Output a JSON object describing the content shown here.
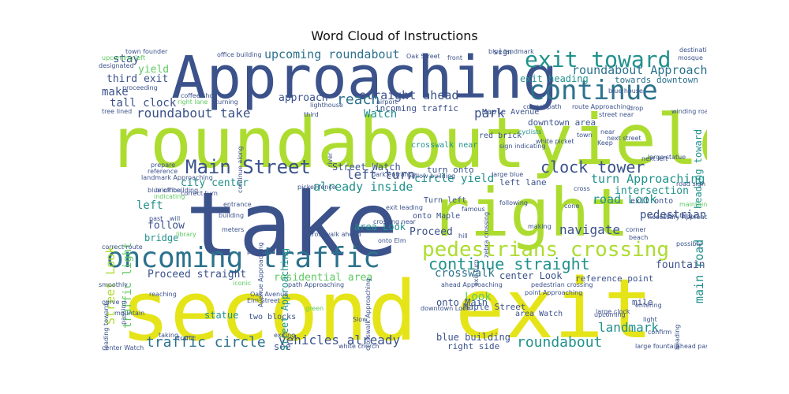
{
  "title": "Word Cloud of Instructions",
  "palette": {
    "purple": "#472a7a",
    "indigo": "#3b528b",
    "blue": "#2c728e",
    "teal": "#21918c",
    "green": "#28ae80",
    "lime": "#5ec962",
    "yellowgreen": "#addc30",
    "yellow": "#e5e419",
    "dark": "#440154"
  },
  "words": [
    "Approaching",
    "roundabout",
    "yield",
    "take",
    "right",
    "second",
    "exit",
    "oncoming traffic",
    "pedestrians crossing",
    "continue",
    "exit toward",
    "Main Street",
    "clock tower",
    "continue straight",
    "traffic circle",
    "vehicles already",
    "roundabout",
    "landmark",
    "upcoming roundabout",
    "roundabout take",
    "Watch",
    "park",
    "left turn",
    "already inside",
    "straight ahead",
    "reach",
    "approach",
    "stay",
    "third exit",
    "make",
    "tall clock",
    "yield",
    "roundabout Approaching",
    "exit heading",
    "towards downtown",
    "circle yield",
    "turn Approaching",
    "road Look",
    "navigate",
    "pedestrian",
    "main road",
    "heading toward",
    "intersection",
    "fountain",
    "Street Look",
    "traffic light",
    "city center",
    "left",
    "follow",
    "bridge",
    "Proceed straight",
    "residential area",
    "crosswalk",
    "center Look",
    "reference point",
    "Look",
    "onto Main",
    "Maple Street",
    "blue building",
    "right side",
    "area Look",
    "Proceed",
    "Street Watch",
    "left lane",
    "turn onto",
    "exit onto",
    "statue",
    "see",
    "mile",
    "Street Approaching",
    "incoming traffic",
    "downtown area",
    "red brick",
    "Maple Avenue",
    "crosswalk near",
    "area Watch",
    "two blocks",
    "onto Maple",
    "Turn left",
    "cyclists",
    "correct path",
    "lighthouse",
    "third",
    "airport",
    "blue landmark",
    "Oak Street",
    "front",
    "sign",
    "coffee shop",
    "tree lined",
    "right lane",
    "turning",
    "town founder",
    "upcoming left",
    "designated",
    "proceeding",
    "office building",
    "street near",
    "winding road",
    "route Approaching",
    "destination",
    "prepare",
    "reference",
    "landmark Approaching",
    "brick building",
    "indicating",
    "blue office",
    "past",
    "will",
    "meters",
    "building",
    "library",
    "next left",
    "large blue",
    "large clock",
    "light",
    "confirm",
    "entering",
    "upcoming",
    "ahead past",
    "large fountain",
    "center Watch",
    "passing",
    "smoothly",
    "mountain",
    "taking",
    "traffic",
    "exiting",
    "Slow",
    "Elm Street",
    "Oak Avenue",
    "green",
    "white church",
    "downtown Look",
    "pedestrian crossing",
    "beach",
    "corner",
    "making",
    "hill",
    "famous",
    "Keep",
    "drop",
    "near",
    "town",
    "cross",
    "next turn",
    "entrance",
    "picket fence",
    "continue along",
    "river",
    "park entrance",
    "crossing near",
    "onto Elm",
    "ahead Approaching",
    "heading",
    "leading towards",
    "curve",
    "iconic",
    "reaching",
    "following",
    "blue house",
    "white picket",
    "road sign",
    "maintain",
    "possibly",
    "necessary Approaching",
    "mosque",
    "correct turn",
    "next street",
    "large statue",
    "cone",
    "sign indicating",
    "path Approaching",
    "Avenue Approaching",
    "zebra crossing",
    "prepared",
    "exit leading",
    "correct route",
    "crosswalk Approaching",
    "yellow building",
    "crosswalk ahead",
    "exit turn",
    "point Approaching",
    "red side"
  ]
}
